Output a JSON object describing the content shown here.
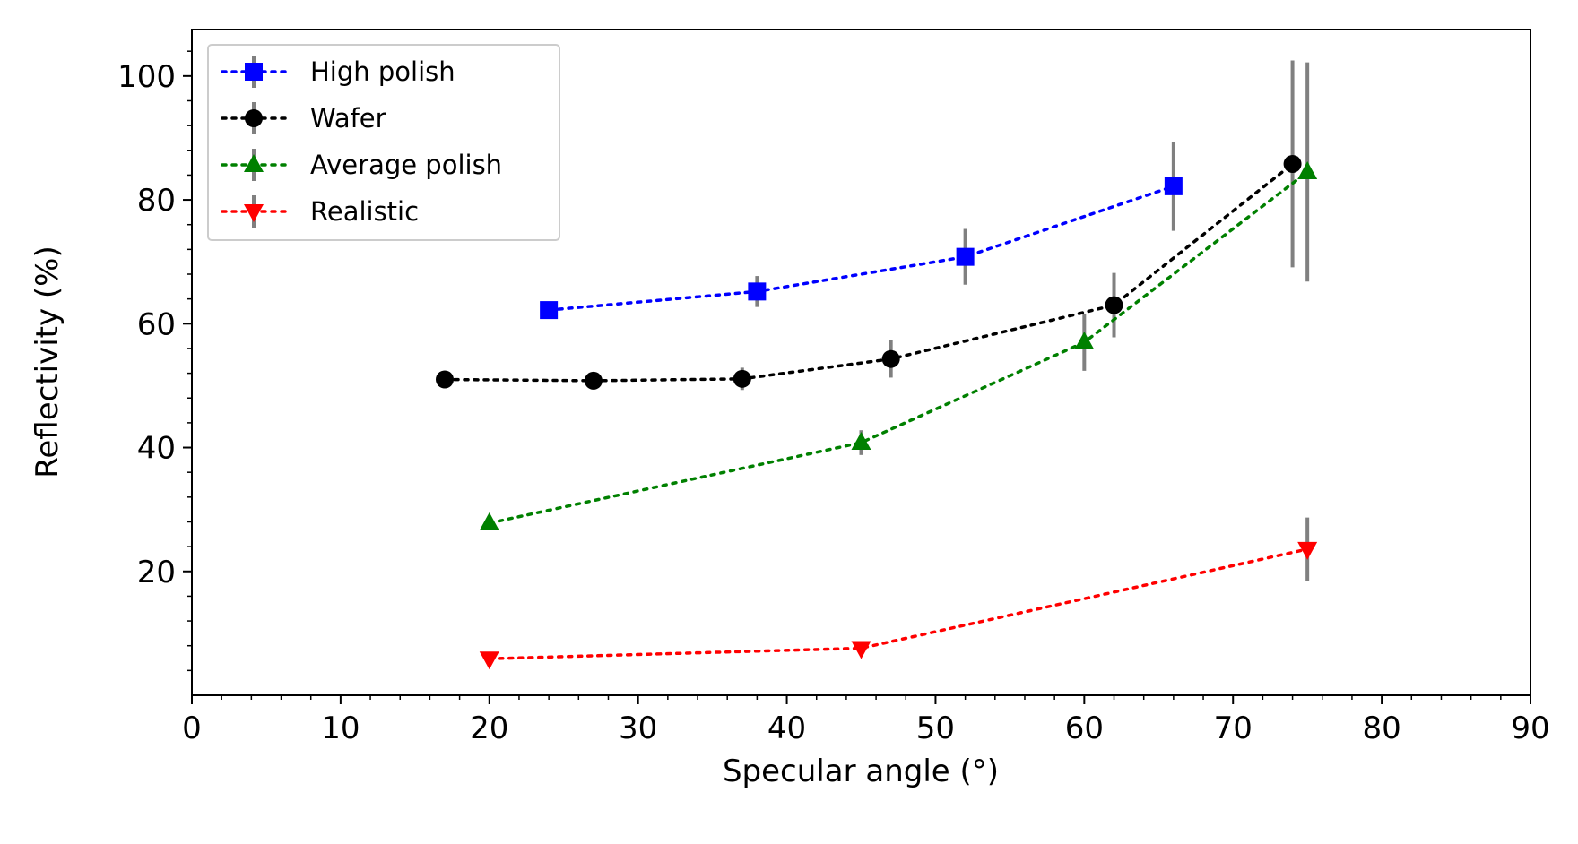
{
  "chart_data": {
    "type": "line",
    "title": "",
    "xlabel": "Specular angle (°)",
    "ylabel": "Reflectivity (%)",
    "xlim": [
      0,
      90
    ],
    "ylim": [
      0,
      107.5
    ],
    "xticks": [
      0,
      10,
      20,
      30,
      40,
      50,
      60,
      70,
      80,
      90
    ],
    "xtick_labels": [
      "0",
      "10",
      "20",
      "30",
      "40",
      "50",
      "60",
      "70",
      "80",
      "90"
    ],
    "yticks": [
      20,
      40,
      60,
      80,
      100
    ],
    "ytick_labels": [
      "20",
      "40",
      "60",
      "80",
      "100"
    ],
    "grid": false,
    "legend": "top-left",
    "errorbar_color": "#808080",
    "series": [
      {
        "name": "High polish",
        "color": "#0000ff",
        "marker": "square",
        "x": [
          24,
          38,
          52,
          66
        ],
        "y": [
          62.2,
          65.2,
          70.8,
          82.2
        ],
        "err": [
          0,
          2.5,
          4.5,
          7.2
        ]
      },
      {
        "name": "Wafer",
        "color": "#000000",
        "marker": "circle",
        "x": [
          17,
          27,
          37,
          47,
          62,
          74
        ],
        "y": [
          51.0,
          50.8,
          51.1,
          54.3,
          63.0,
          85.8
        ],
        "err": [
          0,
          0,
          1.8,
          3.0,
          5.2,
          16.7
        ]
      },
      {
        "name": "Average polish",
        "color": "#008000",
        "marker": "triangle-up",
        "x": [
          20,
          45,
          60,
          75
        ],
        "y": [
          27.8,
          40.8,
          57.0,
          84.5
        ],
        "err": [
          0,
          2.0,
          4.6,
          17.7
        ]
      },
      {
        "name": "Realistic",
        "color": "#ff0000",
        "marker": "triangle-down",
        "x": [
          20,
          45,
          75
        ],
        "y": [
          5.9,
          7.6,
          23.6
        ],
        "err": [
          0,
          0,
          5.1
        ]
      }
    ]
  }
}
